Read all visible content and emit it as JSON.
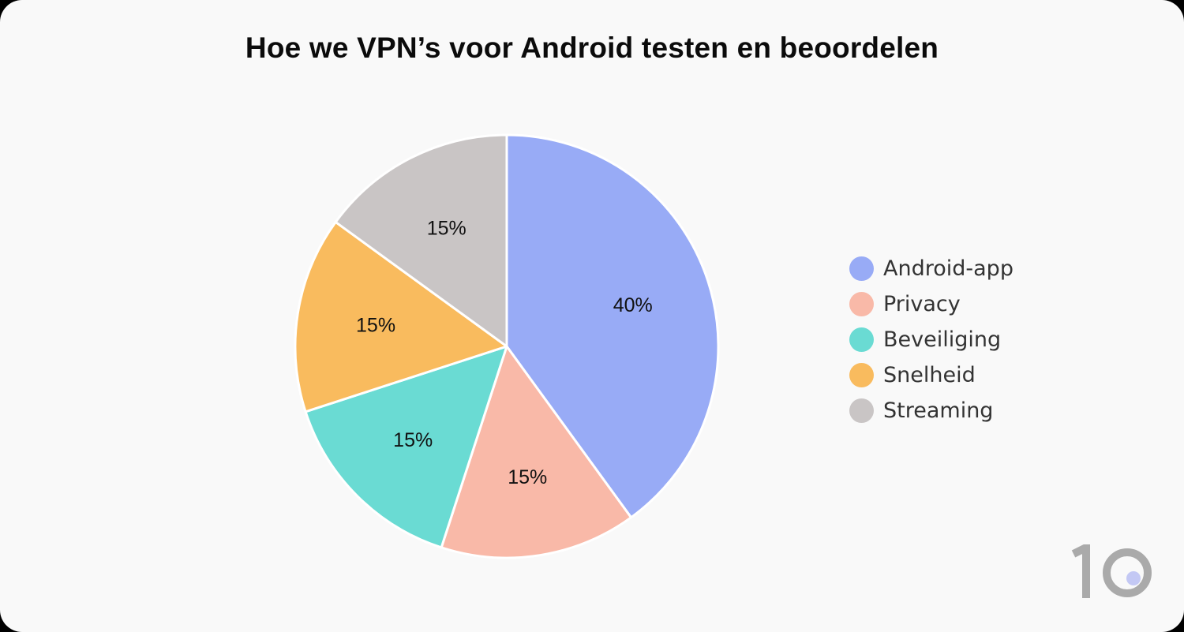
{
  "chart_data": {
    "type": "pie",
    "title": "Hoe we VPN’s voor Android testen en beoordelen",
    "categories": [
      "Android-app",
      "Privacy",
      "Beveiliging",
      "Snelheid",
      "Streaming"
    ],
    "values": [
      40,
      15,
      15,
      15,
      15
    ],
    "data_labels": [
      "40%",
      "15%",
      "15%",
      "15%",
      "15%"
    ],
    "colors": [
      "#98abf6",
      "#f9b9a8",
      "#6adbd3",
      "#f9bb5e",
      "#c9c5c5"
    ],
    "legend_position": "right",
    "start_angle": "12 o'clock",
    "direction": "clockwise"
  },
  "logo": {
    "text": "10",
    "name": "top10vpn-logo"
  }
}
